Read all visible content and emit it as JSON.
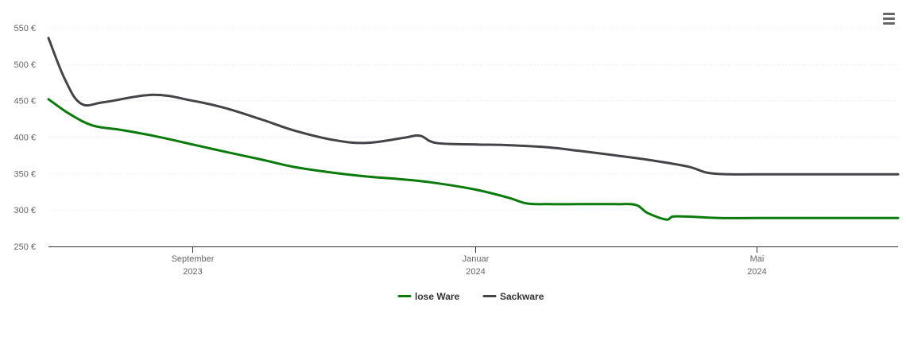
{
  "menu_icon": "hamburger-menu-icon",
  "chart_data": {
    "type": "line",
    "title": "",
    "xlabel": "",
    "ylabel": "",
    "ylim": [
      250,
      550
    ],
    "y_ticks": [
      "550 €",
      "500 €",
      "450 €",
      "400 €",
      "350 €",
      "300 €",
      "250 €"
    ],
    "y_tick_values": [
      550,
      500,
      450,
      400,
      350,
      300,
      250
    ],
    "x_range": [
      "2023-07-01",
      "2024-07-01"
    ],
    "x_ticks": [
      {
        "date": "2023-09-01",
        "month": "September",
        "year": "2023"
      },
      {
        "date": "2024-01-01",
        "month": "Januar",
        "year": "2024"
      },
      {
        "date": "2024-05-01",
        "month": "Mai",
        "year": "2024"
      }
    ],
    "grid": true,
    "legend_position": "bottom-center",
    "series": [
      {
        "name": "lose Ware",
        "color": "#0a7a0a",
        "points": [
          [
            "2023-07-01",
            452
          ],
          [
            "2023-07-10",
            432
          ],
          [
            "2023-07-20",
            416
          ],
          [
            "2023-08-01",
            410
          ],
          [
            "2023-08-15",
            402
          ],
          [
            "2023-09-01",
            390
          ],
          [
            "2023-09-15",
            380
          ],
          [
            "2023-10-01",
            369
          ],
          [
            "2023-10-15",
            359
          ],
          [
            "2023-11-01",
            351
          ],
          [
            "2023-11-15",
            346
          ],
          [
            "2023-12-01",
            342
          ],
          [
            "2023-12-15",
            337
          ],
          [
            "2024-01-01",
            328
          ],
          [
            "2024-01-15",
            317
          ],
          [
            "2024-01-23",
            309
          ],
          [
            "2024-02-01",
            308
          ],
          [
            "2024-02-15",
            308
          ],
          [
            "2024-03-01",
            308
          ],
          [
            "2024-03-10",
            307
          ],
          [
            "2024-03-15",
            296
          ],
          [
            "2024-03-23",
            287
          ],
          [
            "2024-03-26",
            291
          ],
          [
            "2024-04-01",
            291
          ],
          [
            "2024-04-15",
            289
          ],
          [
            "2024-05-01",
            289
          ],
          [
            "2024-06-01",
            289
          ],
          [
            "2024-07-01",
            289
          ]
        ]
      },
      {
        "name": "Sackware",
        "color": "#434348",
        "points": [
          [
            "2023-07-01",
            536
          ],
          [
            "2023-07-08",
            480
          ],
          [
            "2023-07-15",
            446
          ],
          [
            "2023-07-25",
            448
          ],
          [
            "2023-08-15",
            458
          ],
          [
            "2023-09-01",
            450
          ],
          [
            "2023-09-15",
            440
          ],
          [
            "2023-10-01",
            424
          ],
          [
            "2023-10-15",
            409
          ],
          [
            "2023-11-01",
            396
          ],
          [
            "2023-11-15",
            392
          ],
          [
            "2023-12-01",
            399
          ],
          [
            "2023-12-08",
            402
          ],
          [
            "2023-12-15",
            392
          ],
          [
            "2024-01-01",
            390
          ],
          [
            "2024-01-15",
            389
          ],
          [
            "2024-02-01",
            386
          ],
          [
            "2024-02-15",
            381
          ],
          [
            "2024-03-01",
            375
          ],
          [
            "2024-03-15",
            369
          ],
          [
            "2024-04-01",
            360
          ],
          [
            "2024-04-10",
            351
          ],
          [
            "2024-04-20",
            349
          ],
          [
            "2024-05-01",
            349
          ],
          [
            "2024-06-01",
            349
          ],
          [
            "2024-07-01",
            349
          ]
        ]
      }
    ]
  }
}
